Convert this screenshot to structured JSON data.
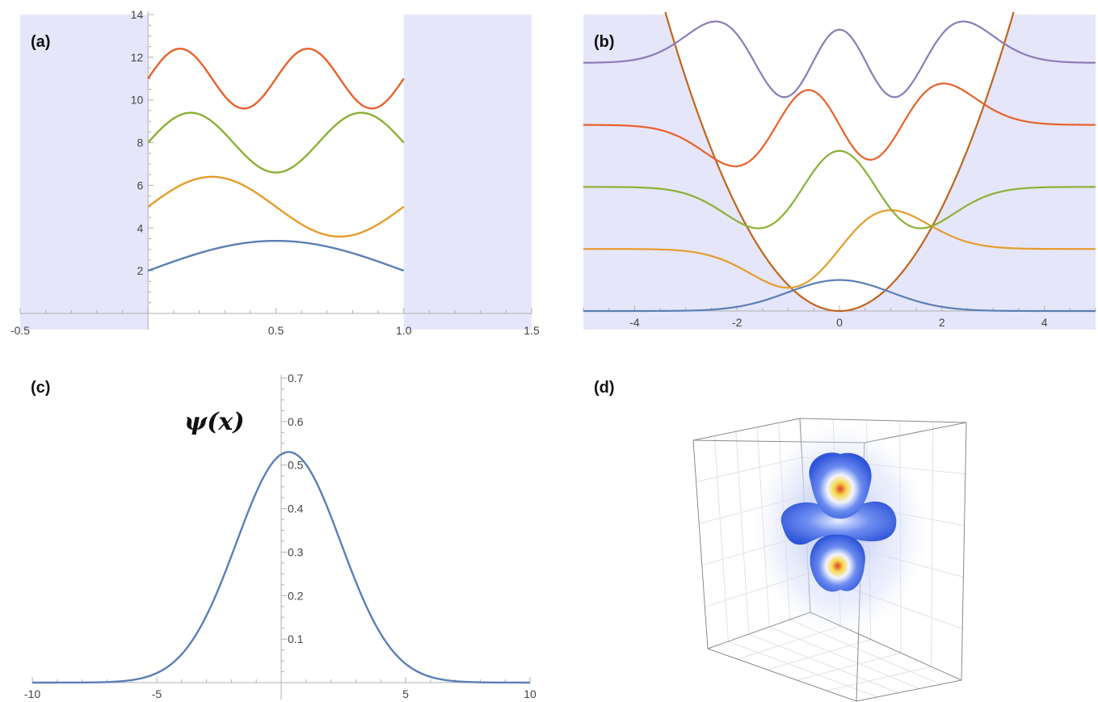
{
  "chart_data": [
    {
      "panel": "(a)",
      "type": "line",
      "xlim": [
        -0.5,
        1.5
      ],
      "ylim": [
        0,
        14
      ],
      "xticks": [
        "-0.5",
        "0.5",
        "1.0",
        "1.5"
      ],
      "yticks": [
        "2",
        "4",
        "6",
        "8",
        "10",
        "12",
        "14"
      ],
      "shaded_regions": [
        [
          -0.5,
          0
        ],
        [
          1.0,
          1.5
        ]
      ],
      "shade_color": "#e6e6fa",
      "series": [
        {
          "color": "#5b7fb5",
          "offset": 2,
          "amplitude": 1.4,
          "n": 1
        },
        {
          "color": "#e59c2c",
          "offset": 5,
          "amplitude": 1.4,
          "n": 2
        },
        {
          "color": "#8ab134",
          "offset": 8,
          "amplitude": 1.4,
          "n": 3
        },
        {
          "color": "#e8612b",
          "offset": 11,
          "amplitude": 1.4,
          "n": 4
        }
      ]
    },
    {
      "panel": "(b)",
      "type": "line",
      "xlim": [
        -5,
        5
      ],
      "ylim": [
        -0.05,
        5.7
      ],
      "xticks": [
        "-4",
        "-2",
        "0",
        "2",
        "4"
      ],
      "shade_color": "#e6e6fa",
      "potential": {
        "color": "#c0651b",
        "formula": "0.5*x^2"
      },
      "series": [
        {
          "color": "#5b7fb5",
          "level": 0,
          "amplitude": 0.6,
          "n": 0
        },
        {
          "color": "#e59c2c",
          "level": 1.2,
          "amplitude": 0.75,
          "n": 1
        },
        {
          "color": "#8ab134",
          "level": 2.4,
          "amplitude": 0.8,
          "n": 2
        },
        {
          "color": "#e8612b",
          "level": 3.6,
          "amplitude": 0.8,
          "n": 3
        },
        {
          "color": "#8d7bb5",
          "level": 4.8,
          "amplitude": 0.8,
          "n": 4
        }
      ]
    },
    {
      "panel": "(c)",
      "type": "line",
      "ylabel": "ψ(x)",
      "xlim": [
        -10,
        10
      ],
      "ylim": [
        0,
        0.7
      ],
      "xticks": [
        "-10",
        "-5",
        "5",
        "10"
      ],
      "yticks": [
        "0.1",
        "0.2",
        "0.3",
        "0.4",
        "0.5",
        "0.6",
        "0.7"
      ],
      "series": [
        {
          "color": "#5b7fb5",
          "peak": 0.53,
          "center": 0.3,
          "sigma": 2.1
        }
      ]
    },
    {
      "panel": "(d)",
      "type": "other",
      "description_colors": {
        "lobe": "#3f63e0",
        "core_yellow": "#f5d94a",
        "core_red": "#e0473a",
        "halo": "#c9d3f7",
        "box": "#888888"
      }
    }
  ]
}
